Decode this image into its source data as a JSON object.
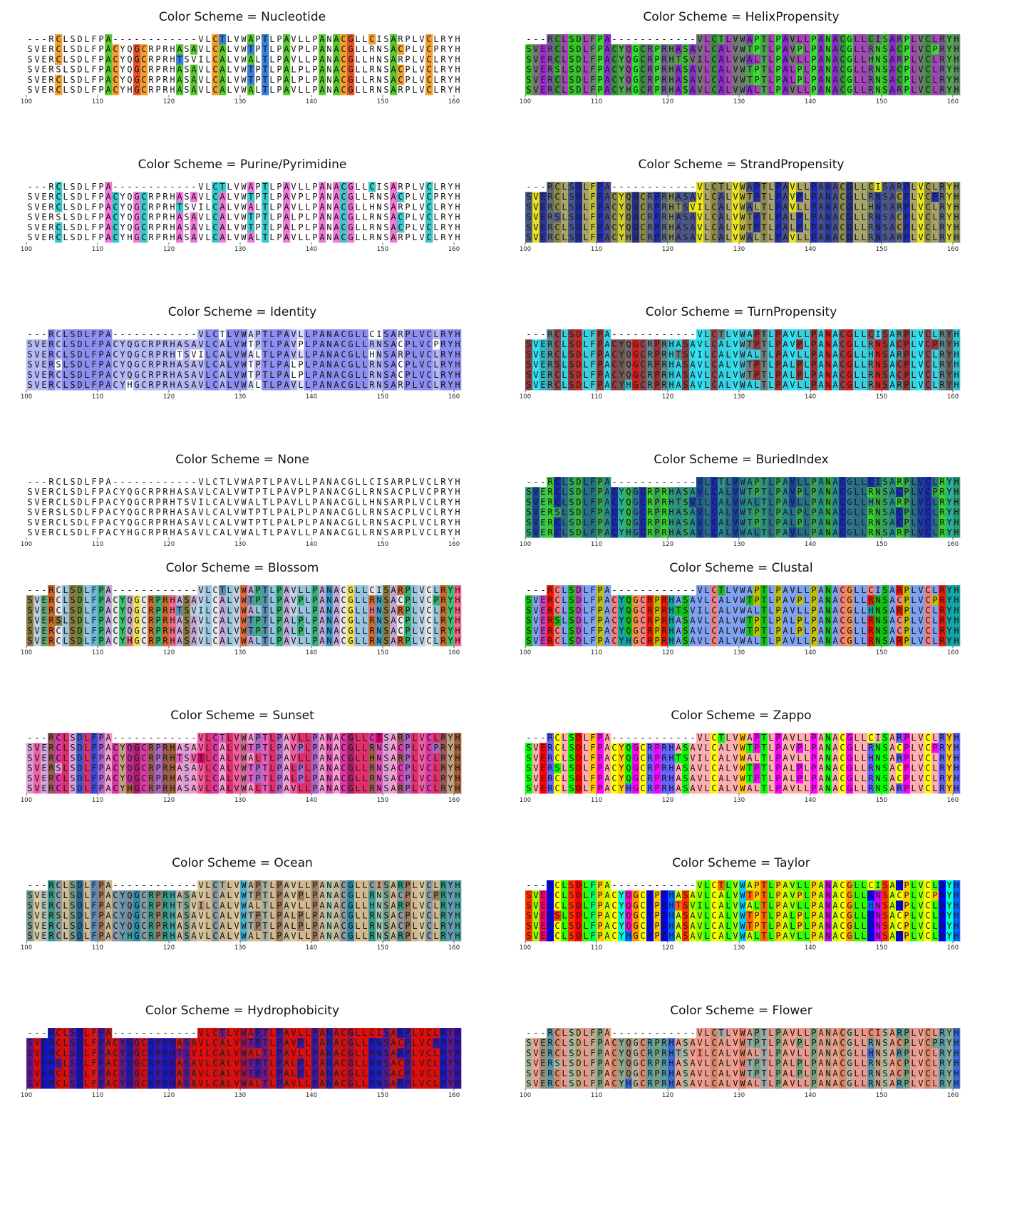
{
  "alignment": {
    "sequences": [
      "---RCLSDLFPA------------VLCTLVWAPTLPAVLLPANACGLLCISARPLVCLRYH",
      "SVERCLSDLFPACYQGCRPRHASAVLCALVWTPTLPAVPLPANACGLLRNSACPLVCPRYH",
      "SVERCLSDLFPACYQGCRPRHTSVILCALVWALTLPAVLLPANACGLLHNSARPLVCLRYH",
      "SVERSLSDLFPACYQGCRPRHASAVLCALVWTPTLPALPLPANACGLLRNSACPLVCLRYH",
      "SVERCLSDLFPACYQGCRPRHASAVLCALVWTPTLPALPLPANACGLLRNSACPLVCLRYH",
      "SVERCLSDLFPACYHGCRPRHASAVLCALVWALTLPAVLLPANACGLLRNSARPLVCLRYH"
    ],
    "x_ticks": [
      "100",
      "110",
      "120",
      "130",
      "140",
      "150",
      "160"
    ]
  },
  "panels": [
    {
      "title": "Color Scheme = Nucleotide",
      "scheme": "nucleotide"
    },
    {
      "title": "Color Scheme = HelixPropensity",
      "scheme": "helix"
    },
    {
      "title": "Color Scheme = Purine/Pyrimidine",
      "scheme": "purine"
    },
    {
      "title": "Color Scheme = StrandPropensity",
      "scheme": "strand"
    },
    {
      "title": "Color Scheme = Identity",
      "scheme": "identity"
    },
    {
      "title": "Color Scheme = TurnPropensity",
      "scheme": "turn"
    },
    {
      "title": "Color Scheme = None",
      "scheme": "none"
    },
    {
      "title": "Color Scheme = BuriedIndex",
      "scheme": "buried"
    },
    {
      "title": "Color Scheme = Blossom",
      "scheme": "blossom"
    },
    {
      "title": "Color Scheme = Clustal",
      "scheme": "clustal"
    },
    {
      "title": "Color Scheme = Sunset",
      "scheme": "sunset"
    },
    {
      "title": "Color Scheme = Zappo",
      "scheme": "zappo"
    },
    {
      "title": "Color Scheme = Ocean",
      "scheme": "ocean"
    },
    {
      "title": "Color Scheme = Taylor",
      "scheme": "taylor"
    },
    {
      "title": "Color Scheme = Hydrophobicity",
      "scheme": "hydrophobicity"
    },
    {
      "title": "Color Scheme = Flower",
      "scheme": "flower"
    }
  ],
  "color_schemes": {
    "nucleotide": {
      "A": "#5ac92f",
      "C": "#f0a030",
      "G": "#e0512a",
      "T": "#3a7fd8",
      "U": "#3a7fd8"
    },
    "purine": {
      "A": "#f07ad8",
      "G": "#f07ad8",
      "C": "#3cc8c8",
      "T": "#3cc8c8",
      "U": "#3cc8c8"
    },
    "helix": {
      "A": "#8c2bd0",
      "R": "#7a5a9a",
      "N": "#3ad02a",
      "D": "#35c528",
      "C": "#3a8f3a",
      "Q": "#9a47a8",
      "E": "#a02bd2",
      "G": "#2fe02a",
      "H": "#5f8a62",
      "I": "#7d6a87",
      "L": "#a345b5",
      "K": "#8a4f9d",
      "M": "#b03fc0",
      "F": "#6c7f72",
      "P": "#38e02e",
      "S": "#3dbd2f",
      "T": "#4ca34a",
      "W": "#6a8470",
      "Y": "#4fa94a",
      "V": "#777676"
    },
    "strand": {
      "A": "#4a4f8a",
      "R": "#5f6a7a",
      "N": "#2a3aa0",
      "D": "#1a2c9c",
      "C": "#8c8a4a",
      "Q": "#7c7a5a",
      "E": "#30329a",
      "G": "#25308a",
      "H": "#7f8a5c",
      "I": "#f0ea10",
      "L": "#a8a46a",
      "K": "#4d5690",
      "M": "#a7a35c",
      "F": "#c4c13a",
      "P": "#1f2bb0",
      "S": "#4c5a8a",
      "T": "#908a52",
      "W": "#b8b23c",
      "Y": "#d0cc2a",
      "V": "#e8e518"
    },
    "turn": {
      "A": "#2fd5e8",
      "R": "#5a8a90",
      "N": "#e01a1a",
      "D": "#c82a2a",
      "C": "#904048",
      "Q": "#7a6a6a",
      "E": "#30b8c8",
      "G": "#d41c1c",
      "H": "#2fc3d2",
      "I": "#38e3f5",
      "L": "#3bd0e0",
      "K": "#737373",
      "M": "#2ad8ea",
      "F": "#47c6d4",
      "P": "#9c2f2f",
      "S": "#8c3d3d",
      "T": "#6f7a7c",
      "W": "#4cb7c4",
      "Y": "#6d5656",
      "V": "#33e1f2"
    },
    "buried": {
      "A": "#2a8a8a",
      "R": "#3ad02a",
      "N": "#37a83a",
      "D": "#36b63b",
      "C": "#1a2aaa",
      "Q": "#38b04a",
      "E": "#3ec45a",
      "G": "#2f7890",
      "H": "#2e9a74",
      "I": "#1f5e8a",
      "L": "#2a6d86",
      "K": "#3dd52a",
      "M": "#2b8072",
      "F": "#247382",
      "P": "#39a054",
      "S": "#35a066",
      "T": "#30927a",
      "W": "#2b7d88",
      "Y": "#2ab090",
      "V": "#1c3f9c"
    },
    "blossom": {
      "A": "#c3a8d8",
      "R": "#d06a2a",
      "N": "#3a9fc8",
      "D": "#6a8a3a",
      "C": "#e6e6e6",
      "Q": "#c8a8d4",
      "E": "#66aa7a",
      "G": "#f0e050",
      "H": "#f06a8a",
      "I": "#b0d8e8",
      "L": "#98c4de",
      "K": "#e88a5a",
      "M": "#a8c8da",
      "F": "#6ab8dc",
      "P": "#38b078",
      "S": "#8a7a40",
      "T": "#5a8fb0",
      "W": "#e06a40",
      "Y": "#3cc070",
      "V": "#c0d0e0"
    },
    "clustal": {
      "A": "#80a0f0",
      "R": "#f01505",
      "N": "#15c015",
      "D": "#c048c0",
      "C": "#f08080",
      "Q": "#15c015",
      "E": "#c048c0",
      "G": "#f09048",
      "H": "#15a4a4",
      "I": "#80a0f0",
      "L": "#80a0f0",
      "K": "#f01505",
      "M": "#80a0f0",
      "F": "#80a0f0",
      "P": "#c0c000",
      "S": "#15c015",
      "T": "#15c015",
      "W": "#80a0f0",
      "Y": "#15a4a4",
      "V": "#80a0f0"
    },
    "sunset": {
      "A": "#f0a0d0",
      "R": "#9a5a5a",
      "N": "#e050b0",
      "D": "#3a5ad0",
      "C": "#d83aa8",
      "Q": "#c22a9c",
      "E": "#d2a6e0",
      "G": "#a8206a",
      "H": "#a0603a",
      "I": "#d0006a",
      "L": "#e0306c",
      "K": "#b08060",
      "M": "#c83a8c",
      "F": "#3a4ad8",
      "P": "#a868c8",
      "S": "#d8a0d8",
      "T": "#e060c0",
      "W": "#d06a90",
      "Y": "#c0a080",
      "V": "#f060a0"
    },
    "zappo": {
      "A": "#ffafaf",
      "R": "#6464ff",
      "N": "#00ff00",
      "D": "#ff0000",
      "C": "#ffff00",
      "Q": "#00ff00",
      "E": "#ff0000",
      "G": "#ff00ff",
      "H": "#6464ff",
      "I": "#ffafaf",
      "L": "#ffafaf",
      "K": "#6464ff",
      "M": "#ffafaf",
      "F": "#ffc800",
      "P": "#ff00ff",
      "S": "#00ff00",
      "T": "#00ff00",
      "W": "#ffc800",
      "Y": "#ffc800",
      "V": "#ffafaf"
    },
    "ocean": {
      "A": "#c8b898",
      "R": "#3a9a8a",
      "N": "#a8c8b0",
      "D": "#2a6a90",
      "C": "#8a9aa0",
      "Q": "#7a8a9a",
      "E": "#b0c0b8",
      "G": "#2a8aa8",
      "H": "#4aa0a0",
      "I": "#c09a80",
      "L": "#d0b890",
      "K": "#8a6a5a",
      "M": "#a88a70",
      "F": "#5a8ab8",
      "P": "#9a7a60",
      "S": "#7a9a8a",
      "T": "#a6b0a0",
      "W": "#4ab0d0",
      "Y": "#6a98b0",
      "V": "#d8c8a0"
    },
    "taylor": {
      "A": "#ccff00",
      "R": "#0000ff",
      "N": "#cc00ff",
      "D": "#ff0000",
      "C": "#ffff00",
      "Q": "#ff00cc",
      "E": "#ff0066",
      "G": "#ff9900",
      "H": "#0066ff",
      "I": "#66ff00",
      "L": "#33ff00",
      "K": "#6600ff",
      "M": "#00ff00",
      "F": "#00ff66",
      "P": "#ffcc00",
      "S": "#ff3300",
      "T": "#ff6600",
      "W": "#00ccff",
      "Y": "#00ffcc",
      "V": "#99ff00"
    },
    "hydrophobicity": {
      "A": "#c01818",
      "R": "#1818c8",
      "N": "#2020b8",
      "D": "#1010c0",
      "C": "#d01010",
      "Q": "#1a1ab8",
      "E": "#1414c0",
      "G": "#9a1040",
      "H": "#3010a8",
      "I": "#e01010",
      "L": "#d81010",
      "K": "#0808d0",
      "M": "#c81010",
      "F": "#d81818",
      "P": "#3a18a0",
      "S": "#5a1890",
      "T": "#701880",
      "W": "#a01040",
      "Y": "#601888",
      "V": "#e00c0c"
    },
    "flower": {
      "A": "#e8a08a",
      "R": "#5a9aa8",
      "N": "#c89a80",
      "D": "#c8a878",
      "C": "#d8886a",
      "Q": "#9a8a70",
      "E": "#a09078",
      "G": "#b8b0a0",
      "H": "#3a6ad8",
      "I": "#f08a78",
      "L": "#e89a90",
      "K": "#8aa0a8",
      "M": "#e09080",
      "F": "#c0a890",
      "P": "#78a080",
      "S": "#a8b8a0",
      "T": "#9aa8a8",
      "W": "#e0806a",
      "Y": "#8aa890",
      "V": "#f0a090"
    }
  },
  "identity_colors": {
    "high": "#8c8ff0",
    "mid": "#b6b8f6",
    "low": "#dcdcfa"
  }
}
